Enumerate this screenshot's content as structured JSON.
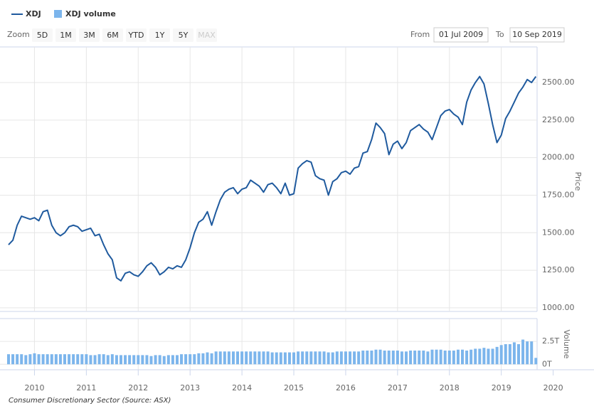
{
  "chart_data": {
    "type": "line",
    "caption": "Consumer Discretionary Sector (Source: ASX)",
    "y_label": "Price",
    "y2_label": "Volume",
    "range_selector": {
      "zoom_label": "Zoom",
      "buttons": [
        "5D",
        "1M",
        "3M",
        "6M",
        "YTD",
        "1Y",
        "5Y",
        "MAX"
      ],
      "from_label": "From",
      "from_value": "01 Jul 2009",
      "to_label": "To",
      "to_value": "10 Sep 2019"
    },
    "grid": true,
    "legend": "top-left",
    "x": [
      "2009-07",
      "2009-08",
      "2009-09",
      "2009-10",
      "2009-11",
      "2009-12",
      "2010-01",
      "2010-02",
      "2010-03",
      "2010-04",
      "2010-05",
      "2010-06",
      "2010-07",
      "2010-08",
      "2010-09",
      "2010-10",
      "2010-11",
      "2010-12",
      "2011-01",
      "2011-02",
      "2011-03",
      "2011-04",
      "2011-05",
      "2011-06",
      "2011-07",
      "2011-08",
      "2011-09",
      "2011-10",
      "2011-11",
      "2011-12",
      "2012-01",
      "2012-02",
      "2012-03",
      "2012-04",
      "2012-05",
      "2012-06",
      "2012-07",
      "2012-08",
      "2012-09",
      "2012-10",
      "2012-11",
      "2012-12",
      "2013-01",
      "2013-02",
      "2013-03",
      "2013-04",
      "2013-05",
      "2013-06",
      "2013-07",
      "2013-08",
      "2013-09",
      "2013-10",
      "2013-11",
      "2013-12",
      "2014-01",
      "2014-02",
      "2014-03",
      "2014-04",
      "2014-05",
      "2014-06",
      "2014-07",
      "2014-08",
      "2014-09",
      "2014-10",
      "2014-11",
      "2014-12",
      "2015-01",
      "2015-02",
      "2015-03",
      "2015-04",
      "2015-05",
      "2015-06",
      "2015-07",
      "2015-08",
      "2015-09",
      "2015-10",
      "2015-11",
      "2015-12",
      "2016-01",
      "2016-02",
      "2016-03",
      "2016-04",
      "2016-05",
      "2016-06",
      "2016-07",
      "2016-08",
      "2016-09",
      "2016-10",
      "2016-11",
      "2016-12",
      "2017-01",
      "2017-02",
      "2017-03",
      "2017-04",
      "2017-05",
      "2017-06",
      "2017-07",
      "2017-08",
      "2017-09",
      "2017-10",
      "2017-11",
      "2017-12",
      "2018-01",
      "2018-02",
      "2018-03",
      "2018-04",
      "2018-05",
      "2018-06",
      "2018-07",
      "2018-08",
      "2018-09",
      "2018-10",
      "2018-11",
      "2018-12",
      "2019-01",
      "2019-02",
      "2019-03",
      "2019-04",
      "2019-05",
      "2019-06",
      "2019-07",
      "2019-08",
      "2019-09"
    ],
    "series": [
      {
        "name": "XDJ",
        "color": "#1f5a9e",
        "values": [
          1420,
          1450,
          1550,
          1610,
          1600,
          1590,
          1600,
          1580,
          1640,
          1650,
          1550,
          1500,
          1480,
          1500,
          1540,
          1550,
          1540,
          1510,
          1520,
          1530,
          1480,
          1490,
          1420,
          1360,
          1320,
          1200,
          1180,
          1230,
          1240,
          1220,
          1210,
          1240,
          1280,
          1300,
          1270,
          1220,
          1240,
          1270,
          1260,
          1280,
          1270,
          1320,
          1400,
          1500,
          1570,
          1590,
          1640,
          1550,
          1640,
          1720,
          1770,
          1790,
          1800,
          1760,
          1790,
          1800,
          1850,
          1830,
          1810,
          1770,
          1820,
          1830,
          1800,
          1760,
          1830,
          1750,
          1760,
          1930,
          1960,
          1980,
          1970,
          1880,
          1860,
          1850,
          1750,
          1840,
          1860,
          1900,
          1910,
          1890,
          1930,
          1940,
          2030,
          2040,
          2120,
          2230,
          2200,
          2160,
          2020,
          2090,
          2110,
          2060,
          2100,
          2180,
          2200,
          2220,
          2190,
          2170,
          2120,
          2200,
          2280,
          2310,
          2320,
          2290,
          2270,
          2220,
          2370,
          2450,
          2500,
          2540,
          2490,
          2360,
          2220,
          2100,
          2150,
          2260,
          2310,
          2370,
          2430,
          2470,
          2520,
          2500,
          2540
        ]
      },
      {
        "name": "XDJ volume",
        "color": "#7cb5ec",
        "axis": "y2",
        "values": [
          1.1,
          1.1,
          1.1,
          1.1,
          1.0,
          1.1,
          1.2,
          1.1,
          1.1,
          1.1,
          1.1,
          1.1,
          1.1,
          1.1,
          1.1,
          1.1,
          1.1,
          1.1,
          1.1,
          1.0,
          1.0,
          1.1,
          1.1,
          1.0,
          1.1,
          1.0,
          1.0,
          1.0,
          1.0,
          1.0,
          1.0,
          1.0,
          1.0,
          0.9,
          1.0,
          1.0,
          0.9,
          1.0,
          1.0,
          1.0,
          1.1,
          1.1,
          1.1,
          1.1,
          1.2,
          1.2,
          1.3,
          1.2,
          1.4,
          1.4,
          1.4,
          1.4,
          1.4,
          1.4,
          1.4,
          1.4,
          1.4,
          1.4,
          1.4,
          1.4,
          1.4,
          1.3,
          1.3,
          1.3,
          1.3,
          1.3,
          1.3,
          1.4,
          1.4,
          1.4,
          1.4,
          1.4,
          1.4,
          1.4,
          1.3,
          1.3,
          1.4,
          1.4,
          1.4,
          1.4,
          1.4,
          1.4,
          1.5,
          1.5,
          1.5,
          1.6,
          1.6,
          1.5,
          1.5,
          1.5,
          1.5,
          1.4,
          1.4,
          1.5,
          1.5,
          1.5,
          1.5,
          1.4,
          1.6,
          1.6,
          1.6,
          1.5,
          1.5,
          1.5,
          1.6,
          1.6,
          1.5,
          1.6,
          1.7,
          1.7,
          1.8,
          1.7,
          1.7,
          1.9,
          2.1,
          2.2,
          2.2,
          2.4,
          2.2,
          2.7,
          2.5,
          2.5,
          0.7
        ]
      }
    ],
    "xlim": [
      2009.5,
      2019.69
    ],
    "xticks": [
      2010,
      2011,
      2012,
      2013,
      2014,
      2015,
      2016,
      2017,
      2018,
      2019,
      2020
    ],
    "ylim": [
      976,
      2737
    ],
    "yticks": [
      {
        "value": 1000,
        "label": "1000.00"
      },
      {
        "value": 1250,
        "label": "1250.00"
      },
      {
        "value": 1500,
        "label": "1500.00"
      },
      {
        "value": 1750,
        "label": "1750.00"
      },
      {
        "value": 2000,
        "label": "2000.00"
      },
      {
        "value": 2250,
        "label": "2250.00"
      },
      {
        "value": 2500,
        "label": "2500.00"
      }
    ],
    "y2lim": [
      -0.6,
      5
    ],
    "y2ticks": [
      {
        "value": 0,
        "label": "0T"
      },
      {
        "value": 2.5,
        "label": "2.5T"
      }
    ]
  }
}
